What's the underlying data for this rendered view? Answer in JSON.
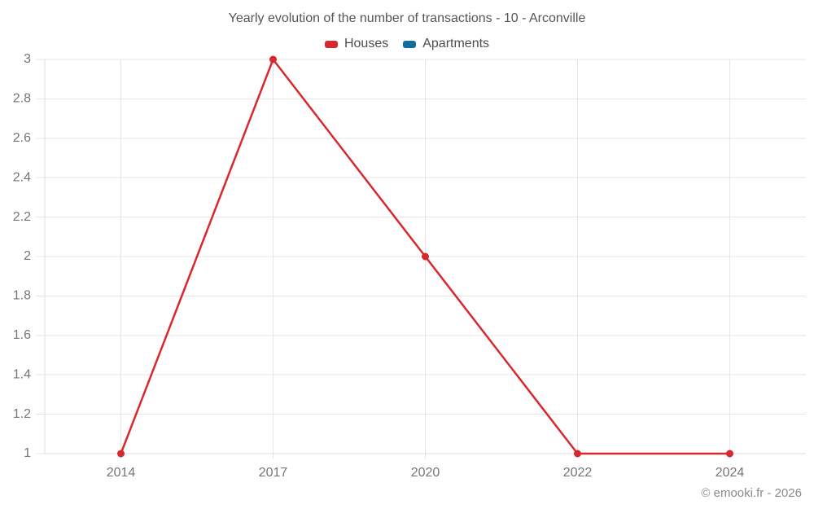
{
  "title": "Yearly evolution of the number of transactions - 10 - Arconville",
  "copyright": "© emooki.fr - 2026",
  "chart_data": {
    "type": "line",
    "title": "Yearly evolution of the number of transactions - 10 - Arconville",
    "categories": [
      "2014",
      "2017",
      "2020",
      "2022",
      "2024"
    ],
    "series": [
      {
        "name": "Houses",
        "color": "#d7282e",
        "values": [
          1,
          3,
          2,
          1,
          1
        ]
      },
      {
        "name": "Apartments",
        "color": "#0f6e9d",
        "values": []
      }
    ],
    "xlabel": "",
    "ylabel": "",
    "ylim": [
      1,
      3
    ],
    "ytick_step": 0.2,
    "ytick_labels": [
      "1",
      "1.2",
      "1.4",
      "1.6",
      "1.8",
      "2",
      "2.2",
      "2.4",
      "2.6",
      "2.8",
      "3"
    ],
    "grid": true,
    "legend_position": "top"
  }
}
